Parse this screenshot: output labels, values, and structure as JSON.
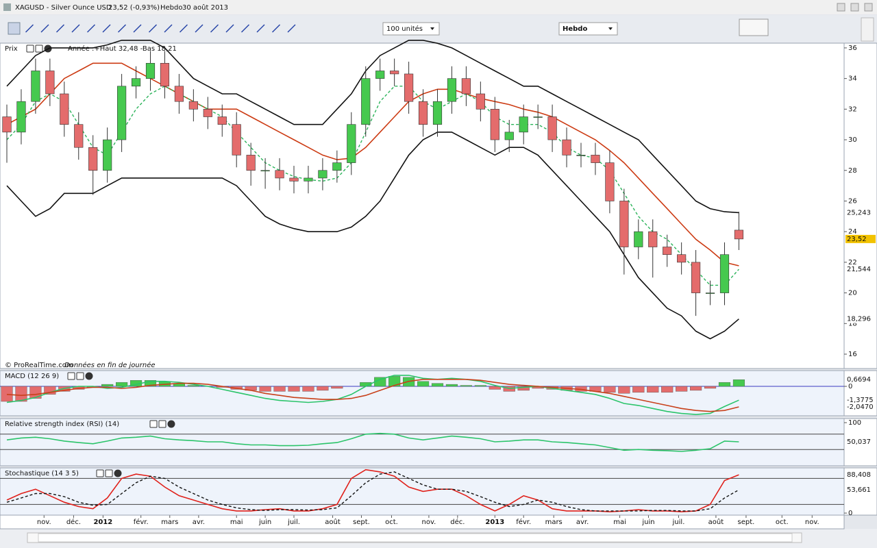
{
  "window": {
    "symbol": "XAGUSD - Silver Ounce USD",
    "quote": "23,52 (-0,93%)",
    "period": "Hebdo",
    "date": "30 août 2013"
  },
  "toolbar": {
    "units": "100 unités",
    "period": "Hebdo"
  },
  "chart_data": [
    {
      "type": "candlestick",
      "title": "Prix",
      "annotation": "Année :+Haut 32,48 -Bas 18,21",
      "source": "© ProRealTime.com",
      "source_note": "Données en fin de journée",
      "up_color": "#46c94f",
      "down_color": "#e46c6c",
      "xlim": [
        -0.287,
        58.33
      ],
      "xticks": [
        {
          "value": 2.59,
          "label": "nov."
        },
        {
          "value": 4.65,
          "label": "déc."
        },
        {
          "value": 6.7,
          "label": "2012"
        },
        {
          "value": 9.34,
          "label": "févr."
        },
        {
          "value": 11.35,
          "label": "mars"
        },
        {
          "value": 13.36,
          "label": "avr."
        },
        {
          "value": 16.0,
          "label": "mai"
        },
        {
          "value": 18.0,
          "label": "juin"
        },
        {
          "value": 20.0,
          "label": "juil."
        },
        {
          "value": 22.7,
          "label": "août"
        },
        {
          "value": 24.7,
          "label": "sept."
        },
        {
          "value": 26.8,
          "label": "oct."
        },
        {
          "value": 29.4,
          "label": "nov."
        },
        {
          "value": 31.4,
          "label": "déc."
        },
        {
          "value": 34.0,
          "label": "2013"
        },
        {
          "value": 36.0,
          "label": "févr."
        },
        {
          "value": 38.1,
          "label": "mars"
        },
        {
          "value": 40.1,
          "label": "avr."
        },
        {
          "value": 42.7,
          "label": "mai"
        },
        {
          "value": 44.7,
          "label": "juin"
        },
        {
          "value": 46.8,
          "label": "juil."
        },
        {
          "value": 49.4,
          "label": "août"
        },
        {
          "value": 51.5,
          "label": "sept."
        },
        {
          "value": 54.0,
          "label": "oct."
        },
        {
          "value": 56.1,
          "label": "nov."
        }
      ],
      "ylim": [
        15.06,
        36.31
      ],
      "yticks": [
        16,
        18,
        20,
        22,
        24,
        26,
        28,
        30,
        32,
        34,
        36
      ],
      "open": [
        31.5,
        30.5,
        32.5,
        34.5,
        33,
        31,
        29.5,
        28,
        30,
        33.5,
        34,
        35,
        33.5,
        32.5,
        32,
        31.5,
        31,
        29,
        28,
        28,
        27.5,
        27.3,
        27.5,
        28,
        28.5,
        31,
        34,
        34.5,
        34.3,
        32.5,
        31,
        32.5,
        34,
        33,
        32,
        30,
        30.5,
        31.5,
        31.5,
        30,
        29,
        29,
        28.5,
        26,
        23,
        24,
        23,
        22.5,
        22,
        20,
        20,
        24.1
      ],
      "high": [
        32.3,
        33.3,
        35.3,
        35.3,
        33.8,
        31.8,
        30.3,
        30.8,
        34.3,
        34.8,
        35.8,
        35.8,
        34.3,
        33.3,
        32.8,
        32.3,
        31.8,
        29.8,
        28.8,
        28.8,
        28.3,
        28.3,
        28.8,
        29.3,
        31.8,
        34.8,
        35.3,
        35.3,
        35.1,
        33.3,
        33.3,
        34.8,
        34.8,
        33.8,
        32.8,
        31.3,
        32.3,
        32.3,
        32.3,
        30.8,
        29.8,
        29.8,
        29.3,
        26.8,
        24.8,
        24.8,
        23.8,
        23.3,
        22.8,
        20.8,
        23.3,
        25.3
      ],
      "low": [
        28.5,
        29.7,
        31.7,
        32.2,
        30.2,
        28.7,
        26.4,
        27.2,
        29.2,
        32.7,
        33.2,
        32.7,
        31.7,
        31.2,
        30.7,
        30.2,
        28.2,
        27.0,
        26.8,
        26.7,
        26.5,
        26.5,
        26.7,
        27.2,
        27.7,
        30.2,
        33.2,
        33.5,
        31.7,
        30.2,
        30.2,
        31.7,
        32.2,
        31.2,
        29.2,
        29.2,
        29.7,
        30.7,
        29.2,
        28.2,
        28.2,
        27.7,
        25.2,
        21.2,
        22.2,
        21.0,
        21.7,
        21.2,
        18.5,
        19.2,
        19.2,
        22.8
      ],
      "close": [
        30.5,
        32.5,
        34.5,
        33,
        31,
        29.5,
        28,
        30,
        33.5,
        34,
        35,
        33.5,
        32.5,
        32,
        31.5,
        31,
        29,
        28,
        28,
        27.5,
        27.3,
        27.5,
        28,
        28.5,
        31,
        34,
        34.5,
        34.3,
        32.5,
        31,
        32.5,
        34,
        33,
        32,
        30,
        30.5,
        31.5,
        31.5,
        30,
        29,
        29,
        28.5,
        26,
        23,
        24,
        23,
        22.5,
        22,
        20,
        20,
        22.5,
        23.52
      ],
      "series": [
        {
          "color": "#111111",
          "style": "solid",
          "values": [
            33.5,
            34.5,
            35.5,
            36,
            36,
            36,
            36,
            36.2,
            36.5,
            36.5,
            36.5,
            36,
            35,
            34,
            33.5,
            33,
            33,
            32.5,
            32,
            31.5,
            31,
            31,
            31,
            32,
            33,
            34.5,
            35.5,
            36,
            36.5,
            36.5,
            36.3,
            36,
            35.5,
            35,
            34.5,
            34,
            33.5,
            33.5,
            33,
            32.5,
            32,
            31.5,
            31,
            30.5,
            30,
            29,
            28,
            27,
            26,
            25.5,
            25.3,
            25.243
          ]
        },
        {
          "color": "#111111",
          "style": "solid",
          "values": [
            27,
            26,
            25,
            25.5,
            26.5,
            26.5,
            26.5,
            27,
            27.5,
            27.5,
            27.5,
            27.5,
            27.5,
            27.5,
            27.5,
            27.5,
            27,
            26,
            25,
            24.5,
            24.2,
            24,
            24,
            24,
            24.3,
            25,
            26,
            27.5,
            29,
            30,
            30.5,
            30.5,
            30,
            29.5,
            29,
            29.5,
            29.5,
            29,
            28,
            27,
            26,
            25,
            24,
            22.5,
            21,
            20,
            19,
            18.5,
            17.5,
            17,
            17.5,
            18.296
          ]
        },
        {
          "color": "#cc3a12",
          "style": "solid",
          "values": [
            31,
            31.5,
            32,
            33,
            34,
            34.5,
            35,
            35,
            35,
            34.5,
            34,
            33.5,
            33,
            32.5,
            32,
            32,
            32,
            31.5,
            31,
            30.5,
            30,
            29.5,
            29,
            28.7,
            28.8,
            29.5,
            30.5,
            31.5,
            32.5,
            33,
            33.3,
            33.3,
            33,
            32.7,
            32.5,
            32.3,
            32,
            31.8,
            31.5,
            31,
            30.5,
            30,
            29.3,
            28.5,
            27.5,
            26.5,
            25.5,
            24.5,
            23.5,
            22.8,
            22,
            21.77
          ]
        },
        {
          "color": "#2bb35a",
          "style": "dashed",
          "values": [
            30,
            31,
            32.5,
            33,
            32.5,
            31,
            29.5,
            29,
            30.5,
            32,
            33,
            33.5,
            33,
            32.5,
            32,
            31.5,
            30.5,
            29.5,
            28.5,
            28,
            27.6,
            27.4,
            27.3,
            27.5,
            28.5,
            30.5,
            32.5,
            33.5,
            33.5,
            32.5,
            32,
            32.5,
            33,
            32.5,
            31.5,
            31,
            31,
            31,
            30.5,
            29.5,
            29,
            28.8,
            28,
            26.5,
            25,
            24,
            23.5,
            22.5,
            21.5,
            20.5,
            20.5,
            21.544
          ]
        }
      ],
      "last_labels": [
        {
          "value": 25.243,
          "label": "25,243",
          "color": "#000000",
          "background": "#ffffff"
        },
        {
          "value": 23.52,
          "label": "23,52",
          "color": "#000000",
          "background": "#f2c200"
        },
        {
          "value": 21.544,
          "label": "21,544",
          "color": "#2bb35a",
          "background": "#ffffff"
        },
        {
          "value": 18.296,
          "label": "18,296",
          "color": "#000000",
          "background": "#ffffff"
        }
      ]
    },
    {
      "type": "macd",
      "title": "MACD (12 26 9)",
      "ylim": [
        -2.93,
        1.57
      ],
      "yticks": [
        0
      ],
      "up_color": "#46c94f",
      "down_color": "#e46c6c",
      "values": [
        -1.5,
        -1.5,
        -1.2,
        -0.8,
        -0.5,
        -0.3,
        -0.1,
        0.2,
        0.4,
        0.6,
        0.6,
        0.5,
        0.3,
        0.1,
        0,
        -0.1,
        -0.3,
        -0.4,
        -0.5,
        -0.5,
        -0.5,
        -0.5,
        -0.4,
        -0.2,
        0,
        0.4,
        0.9,
        1,
        0.9,
        0.5,
        0.3,
        0.2,
        0.1,
        0.1,
        -0.3,
        -0.5,
        -0.4,
        -0.2,
        -0.3,
        -0.4,
        -0.5,
        -0.5,
        -0.6,
        -0.7,
        -0.6,
        -0.6,
        -0.6,
        -0.5,
        -0.4,
        -0.2,
        0.4,
        0.6694
      ],
      "series": [
        {
          "color": "#2bc46a",
          "style": "solid",
          "values": [
            -1.6,
            -1.4,
            -1.1,
            -0.6,
            -0.2,
            0,
            0,
            -0.2,
            -0.1,
            0.2,
            0.5,
            0.5,
            0.4,
            0.2,
            0,
            -0.3,
            -0.6,
            -0.9,
            -1.2,
            -1.4,
            -1.5,
            -1.6,
            -1.5,
            -1.3,
            -0.8,
            0,
            0.7,
            1.1,
            1.1,
            0.8,
            0.7,
            0.8,
            0.7,
            0.5,
            0.1,
            -0.2,
            -0.1,
            0,
            -0.2,
            -0.4,
            -0.6,
            -0.8,
            -1.2,
            -1.7,
            -1.9,
            -2.2,
            -2.5,
            -2.7,
            -2.8,
            -2.7,
            -2.0,
            -1.3775
          ]
        },
        {
          "color": "#c8401a",
          "style": "solid",
          "values": [
            -0.8,
            -0.9,
            -0.8,
            -0.6,
            -0.4,
            -0.2,
            -0.1,
            -0.1,
            -0.2,
            -0.1,
            0.1,
            0.2,
            0.3,
            0.3,
            0.2,
            0,
            -0.2,
            -0.4,
            -0.7,
            -0.9,
            -1.1,
            -1.2,
            -1.3,
            -1.3,
            -1.2,
            -0.9,
            -0.4,
            0.1,
            0.5,
            0.7,
            0.7,
            0.7,
            0.7,
            0.6,
            0.4,
            0.2,
            0.1,
            0,
            -0.1,
            -0.2,
            -0.3,
            -0.5,
            -0.7,
            -1.0,
            -1.3,
            -1.6,
            -1.9,
            -2.2,
            -2.4,
            -2.5,
            -2.4,
            -2.047
          ]
        }
      ],
      "last_labels": [
        {
          "value": 0.6694,
          "label": "0,6694",
          "color": "#2bb35a",
          "background": "#ffffff"
        },
        {
          "value": -1.3775,
          "label": "-1,3775",
          "color": "#2bb35a",
          "background": "#ffffff"
        },
        {
          "value": -2.047,
          "label": "-2,0470",
          "color": "#2bb35a",
          "background": "#ffffff"
        }
      ]
    },
    {
      "type": "line",
      "title": "Relative strength index (RSI) (14)",
      "ylim": [
        -12.5,
        110.7
      ],
      "yticks": [
        100
      ],
      "levels": [
        70,
        30
      ],
      "series": [
        {
          "color": "#2bc46a",
          "style": "solid",
          "values": [
            55,
            60,
            62,
            58,
            52,
            48,
            45,
            52,
            60,
            62,
            65,
            58,
            55,
            53,
            50,
            50,
            45,
            42,
            42,
            40,
            40,
            41,
            45,
            48,
            58,
            70,
            72,
            70,
            60,
            55,
            60,
            65,
            62,
            58,
            50,
            52,
            55,
            55,
            50,
            48,
            45,
            42,
            35,
            28,
            30,
            28,
            27,
            25,
            28,
            32,
            52,
            50.037
          ]
        }
      ],
      "last_labels": [
        {
          "value": 50.037,
          "label": "50,037",
          "color": "#e0245a",
          "background": "#ffffff"
        }
      ]
    },
    {
      "type": "line",
      "title": "Stochastique (14 3 5)",
      "ylim": [
        -4.7,
        104.3
      ],
      "yticks": [
        0
      ],
      "levels": [
        80,
        20
      ],
      "series": [
        {
          "color": "#e0201a",
          "style": "solid",
          "values": [
            30,
            45,
            55,
            40,
            25,
            15,
            10,
            35,
            80,
            90,
            85,
            60,
            40,
            30,
            20,
            10,
            5,
            5,
            8,
            10,
            5,
            5,
            10,
            20,
            80,
            100,
            95,
            85,
            60,
            50,
            55,
            55,
            40,
            20,
            5,
            20,
            40,
            30,
            10,
            5,
            5,
            5,
            3,
            5,
            8,
            5,
            5,
            3,
            5,
            20,
            75,
            88.408
          ]
        },
        {
          "color": "#111111",
          "style": "dashed",
          "values": [
            25,
            35,
            45,
            45,
            38,
            25,
            18,
            20,
            45,
            70,
            85,
            80,
            60,
            45,
            30,
            20,
            12,
            8,
            6,
            8,
            8,
            7,
            8,
            12,
            40,
            70,
            90,
            95,
            80,
            65,
            55,
            55,
            50,
            38,
            25,
            15,
            20,
            30,
            25,
            15,
            8,
            5,
            5,
            5,
            5,
            6,
            6,
            5,
            5,
            10,
            35,
            53.661
          ]
        }
      ],
      "last_labels": [
        {
          "value": 88.408,
          "label": "88,408",
          "color": "#2bb35a",
          "background": "#ffffff"
        },
        {
          "value": 53.661,
          "label": "53,661",
          "color": "#000000",
          "background": "#ffffff"
        }
      ]
    }
  ]
}
